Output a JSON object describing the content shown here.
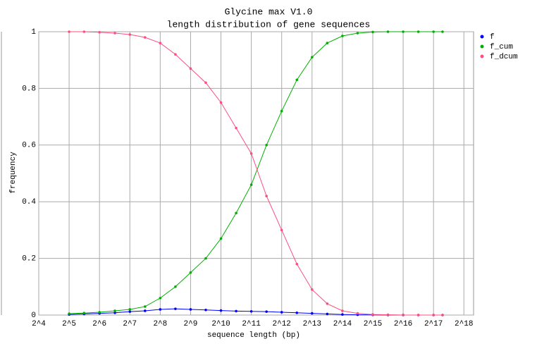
{
  "chart_data": {
    "type": "line",
    "title": "Glycine max V1.0",
    "subtitle": "length distribution of gene sequences",
    "x_label": "sequence length (bp)",
    "y_label": "frequency",
    "x_log_base": 2,
    "grid": true,
    "legend": "right",
    "x": [
      32,
      45,
      64,
      91,
      128,
      181,
      256,
      362,
      512,
      724,
      1024,
      1448,
      2048,
      2896,
      4096,
      5793,
      8192,
      11585,
      16384,
      23170,
      32768,
      46341,
      65536,
      92682,
      131072,
      161000
    ],
    "series": [
      {
        "name": "f",
        "color": "#0000ff",
        "values": [
          0.002,
          0.004,
          0.006,
          0.008,
          0.012,
          0.015,
          0.02,
          0.022,
          0.02,
          0.018,
          0.016,
          0.014,
          0.013,
          0.012,
          0.01,
          0.008,
          0.006,
          0.004,
          0.002,
          0.001,
          0.0005,
          0.0002,
          0.0001,
          0,
          0,
          0
        ]
      },
      {
        "name": "f_cum",
        "color": "#00b000",
        "values": [
          0.005,
          0.007,
          0.01,
          0.015,
          0.02,
          0.03,
          0.06,
          0.1,
          0.15,
          0.2,
          0.27,
          0.36,
          0.46,
          0.6,
          0.72,
          0.83,
          0.91,
          0.96,
          0.985,
          0.995,
          0.999,
          1,
          1,
          1,
          1,
          1
        ]
      },
      {
        "name": "f_dcum",
        "color": "#ff4d80",
        "values": [
          1,
          1,
          0.998,
          0.995,
          0.99,
          0.98,
          0.96,
          0.92,
          0.87,
          0.82,
          0.75,
          0.66,
          0.57,
          0.42,
          0.3,
          0.18,
          0.09,
          0.04,
          0.015,
          0.006,
          0.002,
          0.001,
          0,
          0,
          0,
          0
        ]
      }
    ],
    "xlim": [
      16,
      327000
    ],
    "ylim": [
      0,
      1
    ],
    "xticks": [
      {
        "value": 16,
        "label": "2^4"
      },
      {
        "value": 32,
        "label": "2^5"
      },
      {
        "value": 64,
        "label": "2^6"
      },
      {
        "value": 128,
        "label": "2^7"
      },
      {
        "value": 256,
        "label": "2^8"
      },
      {
        "value": 512,
        "label": "2^9"
      },
      {
        "value": 1024,
        "label": "2^10"
      },
      {
        "value": 2048,
        "label": "2^11"
      },
      {
        "value": 4096,
        "label": "2^12"
      },
      {
        "value": 8192,
        "label": "2^13"
      },
      {
        "value": 16384,
        "label": "2^14"
      },
      {
        "value": 32768,
        "label": "2^15"
      },
      {
        "value": 65536,
        "label": "2^16"
      },
      {
        "value": 131072,
        "label": "2^17"
      },
      {
        "value": 262144,
        "label": "2^18"
      }
    ],
    "yticks": [
      0,
      0.2,
      0.4,
      0.6,
      0.8,
      1
    ]
  }
}
